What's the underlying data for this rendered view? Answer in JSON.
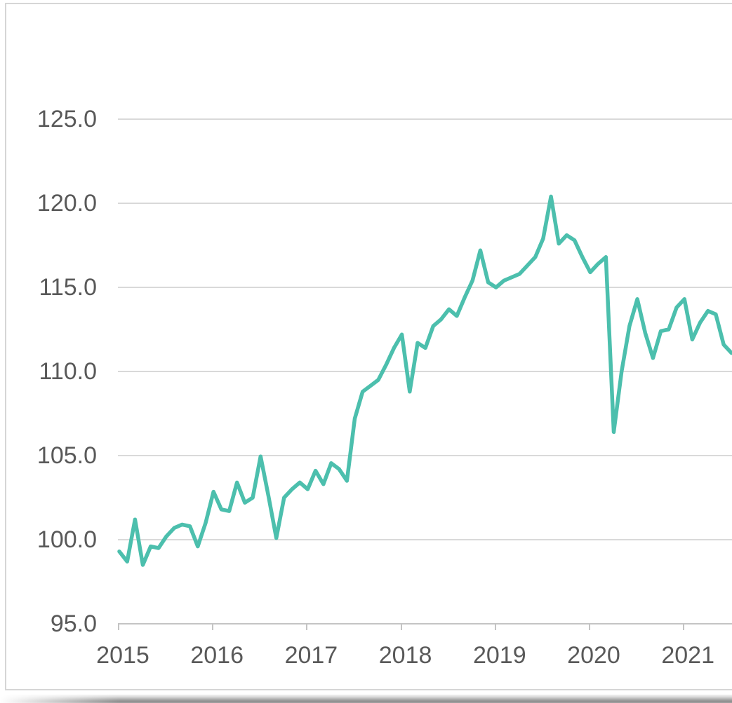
{
  "chart_data": {
    "type": "line",
    "x_axis": {
      "tick_labels": [
        "2015",
        "2016",
        "2017",
        "2018",
        "2019",
        "2020",
        "2021"
      ],
      "note": "monthly data, first point Jan 2015, last visible point Jul 2021 (clipped at right edge)"
    },
    "y_axis": {
      "tick_labels": [
        "95.0",
        "100.0",
        "105.0",
        "110.0",
        "115.0",
        "120.0",
        "125.0"
      ],
      "tick_values": [
        95,
        100,
        105,
        110,
        115,
        120,
        125
      ],
      "visible_range": [
        95,
        131
      ]
    },
    "grid": "horizontal-only",
    "legend": "none",
    "series": [
      {
        "color": "#4CBFAD",
        "first_point": "2015-01",
        "frequency": "monthly",
        "values": [
          99.3,
          98.7,
          101.2,
          98.5,
          99.6,
          99.5,
          100.2,
          100.7,
          100.9,
          100.8,
          99.6,
          101.0,
          102.85,
          101.8,
          101.7,
          103.4,
          102.2,
          102.5,
          104.95,
          102.6,
          100.1,
          102.5,
          103.0,
          103.4,
          103.0,
          104.1,
          103.3,
          104.55,
          104.2,
          103.5,
          107.2,
          108.8,
          109.15,
          109.5,
          110.4,
          111.4,
          112.2,
          108.8,
          111.7,
          111.4,
          112.7,
          113.1,
          113.7,
          113.3,
          114.4,
          115.4,
          117.2,
          115.3,
          115.0,
          115.4,
          115.6,
          115.8,
          116.3,
          116.8,
          117.9,
          120.4,
          117.6,
          118.1,
          117.8,
          116.8,
          115.9,
          116.4,
          116.8,
          106.4,
          110.0,
          112.7,
          114.3,
          112.3,
          110.8,
          112.4,
          112.5,
          113.8,
          114.3,
          111.9,
          112.9,
          113.6,
          113.4,
          111.6,
          111.1
        ]
      }
    ],
    "colors": {
      "line": "#4CBFAD",
      "gridline": "#d9d9d9",
      "axis": "#c4c4c4",
      "tick_label": "#595959",
      "frame_border": "#d6d6d6",
      "background": "#ffffff"
    }
  }
}
